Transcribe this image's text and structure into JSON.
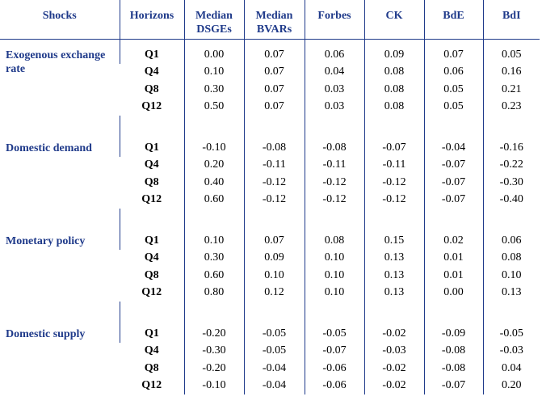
{
  "table": {
    "headers": {
      "shocks": "Shocks",
      "horizons": "Horizons",
      "median_dsges_line1": "Median",
      "median_dsges_line2": "DSGEs",
      "median_bvars_line1": "Median",
      "median_bvars_line2": "BVARs",
      "forbes": "Forbes",
      "ck": "CK",
      "bde": "BdE",
      "bdi": "BdI"
    },
    "groups": [
      {
        "shock": "Exogenous exchange rate",
        "rows": [
          {
            "h": "Q1",
            "dsge": "0.00",
            "bvar": "0.07",
            "forbes": "0.06",
            "ck": "0.09",
            "bde": "0.07",
            "bdi": "0.05"
          },
          {
            "h": "Q4",
            "dsge": "0.10",
            "bvar": "0.07",
            "forbes": "0.04",
            "ck": "0.08",
            "bde": "0.06",
            "bdi": "0.16"
          },
          {
            "h": "Q8",
            "dsge": "0.30",
            "bvar": "0.07",
            "forbes": "0.03",
            "ck": "0.08",
            "bde": "0.05",
            "bdi": "0.21"
          },
          {
            "h": "Q12",
            "dsge": "0.50",
            "bvar": "0.07",
            "forbes": "0.03",
            "ck": "0.08",
            "bde": "0.05",
            "bdi": "0.23"
          }
        ]
      },
      {
        "shock": "Domestic demand",
        "rows": [
          {
            "h": "Q1",
            "dsge": "-0.10",
            "bvar": "-0.08",
            "forbes": "-0.08",
            "ck": "-0.07",
            "bde": "-0.04",
            "bdi": "-0.16"
          },
          {
            "h": "Q4",
            "dsge": "0.20",
            "bvar": "-0.11",
            "forbes": "-0.11",
            "ck": "-0.11",
            "bde": "-0.07",
            "bdi": "-0.22"
          },
          {
            "h": "Q8",
            "dsge": "0.40",
            "bvar": "-0.12",
            "forbes": "-0.12",
            "ck": "-0.12",
            "bde": "-0.07",
            "bdi": "-0.30"
          },
          {
            "h": "Q12",
            "dsge": "0.60",
            "bvar": "-0.12",
            "forbes": "-0.12",
            "ck": "-0.12",
            "bde": "-0.07",
            "bdi": "-0.40"
          }
        ]
      },
      {
        "shock": "Monetary policy",
        "rows": [
          {
            "h": "Q1",
            "dsge": "0.10",
            "bvar": "0.07",
            "forbes": "0.08",
            "ck": "0.15",
            "bde": "0.02",
            "bdi": "0.06"
          },
          {
            "h": "Q4",
            "dsge": "0.30",
            "bvar": "0.09",
            "forbes": "0.10",
            "ck": "0.13",
            "bde": "0.01",
            "bdi": "0.08"
          },
          {
            "h": "Q8",
            "dsge": "0.60",
            "bvar": "0.10",
            "forbes": "0.10",
            "ck": "0.13",
            "bde": "0.01",
            "bdi": "0.10"
          },
          {
            "h": "Q12",
            "dsge": "0.80",
            "bvar": "0.12",
            "forbes": "0.10",
            "ck": "0.13",
            "bde": "0.00",
            "bdi": "0.13"
          }
        ]
      },
      {
        "shock": "Domestic supply",
        "rows": [
          {
            "h": "Q1",
            "dsge": "-0.20",
            "bvar": "-0.05",
            "forbes": "-0.05",
            "ck": "-0.02",
            "bde": "-0.09",
            "bdi": "-0.05"
          },
          {
            "h": "Q4",
            "dsge": "-0.30",
            "bvar": "-0.05",
            "forbes": "-0.07",
            "ck": "-0.03",
            "bde": "-0.08",
            "bdi": "-0.03"
          },
          {
            "h": "Q8",
            "dsge": "-0.20",
            "bvar": "-0.04",
            "forbes": "-0.06",
            "ck": "-0.02",
            "bde": "-0.08",
            "bdi": "0.04"
          },
          {
            "h": "Q12",
            "dsge": "-0.10",
            "bvar": "-0.04",
            "forbes": "-0.06",
            "ck": "-0.02",
            "bde": "-0.07",
            "bdi": "0.20"
          }
        ]
      }
    ]
  }
}
